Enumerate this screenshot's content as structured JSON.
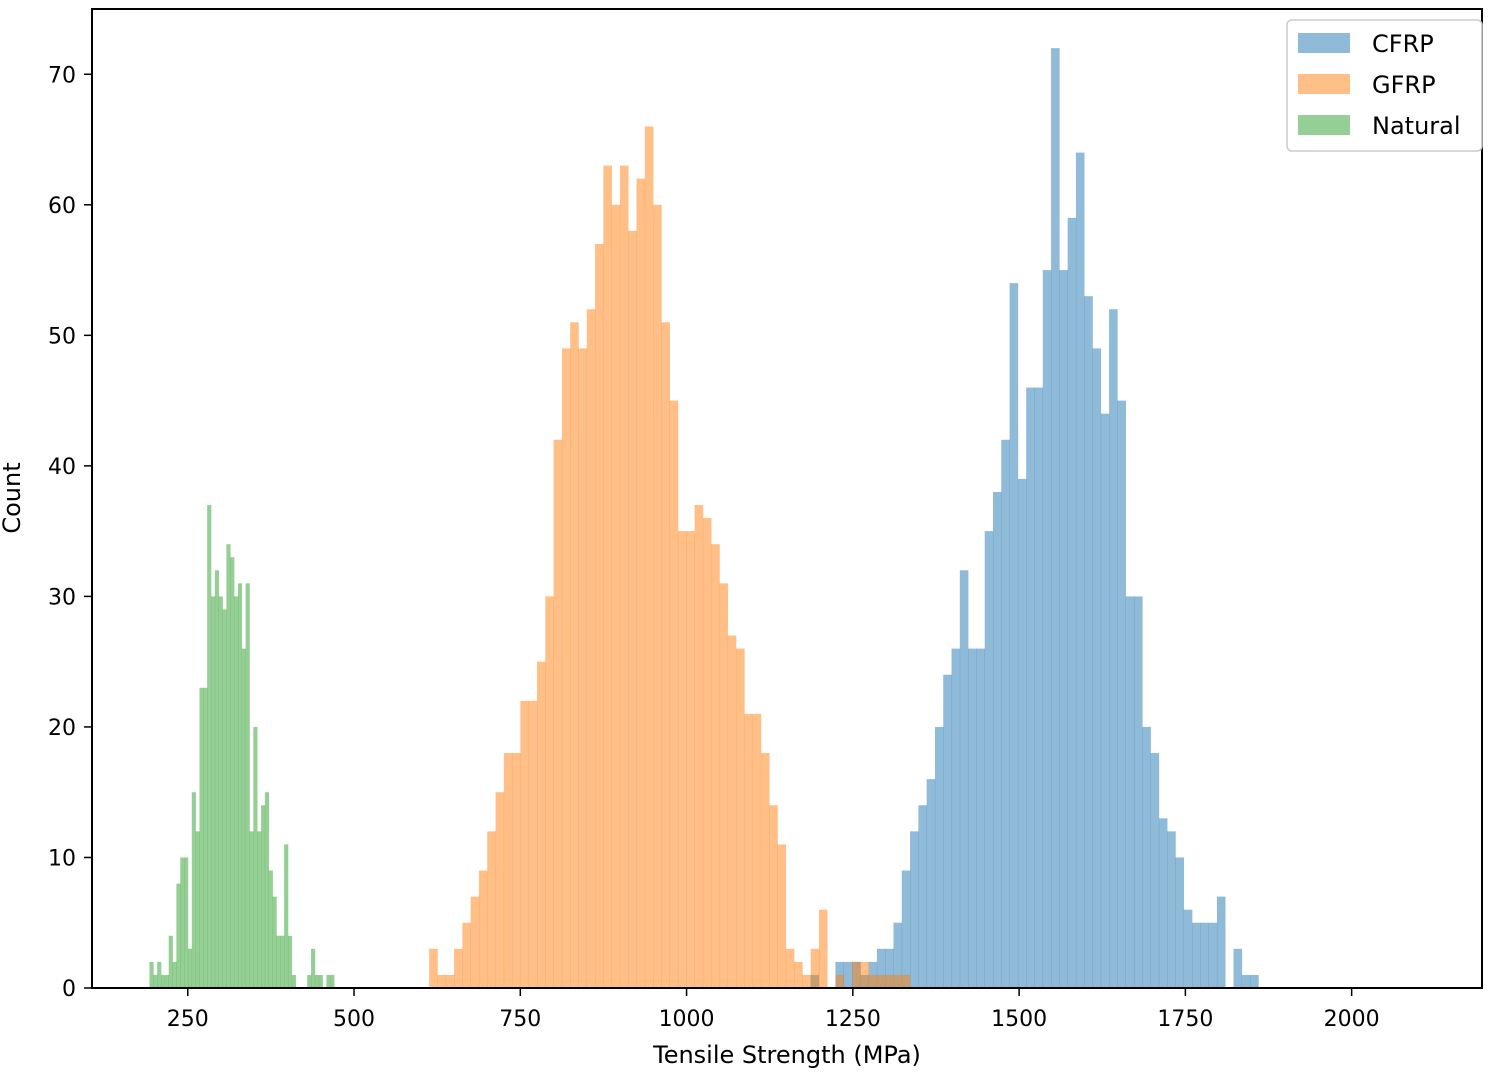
{
  "chart_data": {
    "type": "histogram",
    "xlabel": "Tensile Strength (MPa)",
    "ylabel": "Count",
    "xlim": [
      106,
      2196
    ],
    "ylim": [
      0,
      75
    ],
    "xticks": [
      250,
      500,
      750,
      1000,
      1250,
      1500,
      1750,
      2000
    ],
    "yticks": [
      0,
      10,
      20,
      30,
      40,
      50,
      60,
      70
    ],
    "grid": false,
    "legend_position": "top-right",
    "bar_opacity": 0.5,
    "series": [
      {
        "name": "CFRP",
        "color": "#1f77b4",
        "bin_start": 1186.4,
        "bin_width": 12.47,
        "counts": [
          1,
          0,
          0,
          2,
          2,
          2,
          1,
          2,
          3,
          3,
          5,
          9,
          12,
          14,
          16,
          20,
          24,
          26,
          32,
          26,
          26,
          35,
          38,
          42,
          54,
          39,
          46,
          46,
          55,
          72,
          55,
          59,
          64,
          53,
          49,
          44,
          52,
          45,
          30,
          30,
          20,
          18,
          13,
          12,
          10,
          6,
          5,
          5,
          5,
          7,
          0,
          3,
          1,
          1
        ]
      },
      {
        "name": "GFRP",
        "color": "#ff7f0e",
        "bin_start": 613.0,
        "bin_width": 12.47,
        "counts": [
          3,
          1,
          1,
          3,
          5,
          7,
          9,
          12,
          15,
          18,
          18,
          22,
          22,
          25,
          30,
          42,
          49,
          51,
          49,
          52,
          57,
          63,
          60,
          63,
          58,
          62,
          66,
          60,
          51,
          45,
          35,
          35,
          37,
          36,
          34,
          31,
          27,
          26,
          21,
          21,
          18,
          14,
          11,
          3,
          2,
          1,
          3,
          6,
          0,
          1,
          0,
          2,
          2,
          1,
          1,
          1,
          1,
          1
        ]
      },
      {
        "name": "Natural",
        "color": "#2ca02c",
        "bin_start": 192.4,
        "bin_width": 5.785,
        "counts": [
          2,
          1,
          2,
          1,
          1,
          4,
          2,
          8,
          10,
          10,
          3,
          15,
          12,
          23,
          23,
          37,
          30,
          32,
          30,
          29,
          34,
          33,
          30,
          31,
          26,
          31,
          12,
          20,
          12,
          14,
          15,
          9,
          7,
          4,
          4,
          11,
          4,
          1,
          0,
          0,
          0,
          1,
          3,
          1,
          1,
          0,
          1,
          1
        ]
      }
    ]
  }
}
